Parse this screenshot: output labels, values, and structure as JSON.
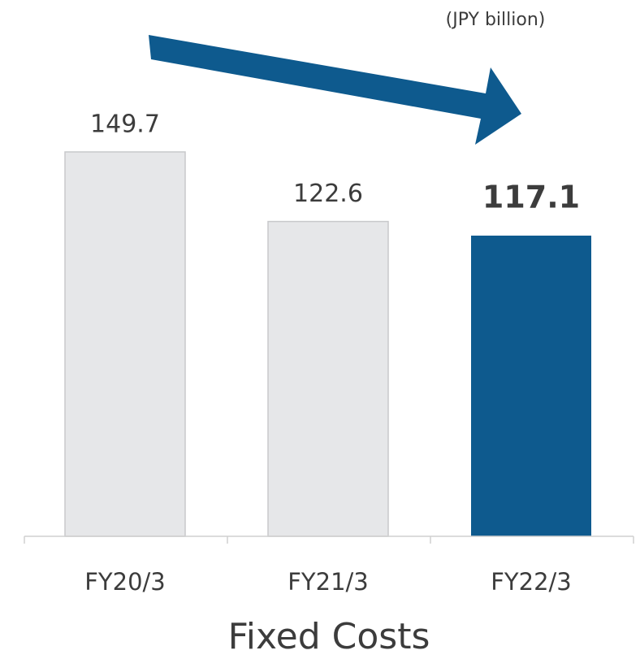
{
  "chart_data": {
    "type": "bar",
    "title": "Fixed Costs",
    "unit": "(JPY billion)",
    "categories": [
      "FY20/3",
      "FY21/3",
      "FY22/3"
    ],
    "values": [
      149.7,
      122.6,
      117.1
    ],
    "colors": [
      "#e6e7e9",
      "#e6e7e9",
      "#0e5a8e"
    ],
    "highlight": 2,
    "ylim": [
      0,
      150
    ]
  }
}
